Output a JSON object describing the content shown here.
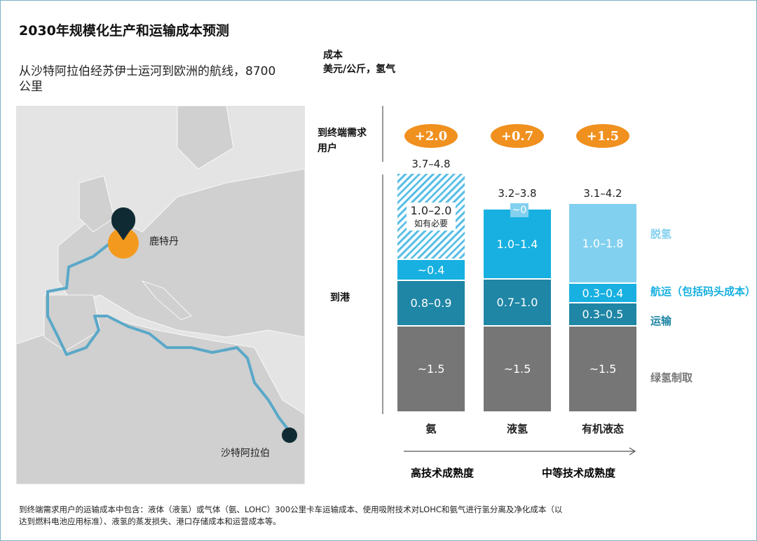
{
  "title": "2030年规模化生产和运输成本预测",
  "subtitle": "从沙特阿拉伯经苏伊士运河到欧洲的航线，8700 公里",
  "map": {
    "origin_label": "沙特阿拉伯",
    "destination_label": "鹿特丹",
    "route_color": "#5aa8c8"
  },
  "chart_data": {
    "type": "bar",
    "stacked": true,
    "unit_label": [
      "成本",
      "美元/公斤，氢气"
    ],
    "row_labels": {
      "end_user": "到终端需求用户",
      "to_port": "到港"
    },
    "categories": [
      "氨",
      "液氢",
      "有机液态"
    ],
    "series": [
      {
        "name": "绿氢制取",
        "color": "#767676",
        "values": [
          "~1.5",
          "~1.5",
          "~1.5"
        ]
      },
      {
        "name": "运输",
        "color": "#1f86a5",
        "values": [
          "0.8–0.9",
          "0.7–1.0",
          "0.3–0.5"
        ]
      },
      {
        "name": "航运（包括码头成本）",
        "color": "#17b0e0",
        "values": [
          "~0.4",
          "1.0–1.4",
          "0.3–0.4"
        ]
      },
      {
        "name": "脱氢",
        "color": "#82d0ef",
        "values": [
          "1.0–2.0",
          "~0",
          "1.0–1.8"
        ]
      }
    ],
    "dehydro_note": "如有必要",
    "totals": [
      "3.7–4.8",
      "3.2–3.8",
      "3.1–4.2"
    ],
    "end_user_add": [
      "+2.0",
      "+0.7",
      "+1.5"
    ],
    "maturity": {
      "high": "高技术成熟度",
      "medium": "中等技术成熟度"
    },
    "colors": {
      "bubble": "#f0901e"
    }
  },
  "footnote": "到终端需求用户的运输成本中包含：液体（液氢）或气体（氨、LOHC）300公里卡车运输成本、使用吸附技术对LOHC和氨气进行氢分离及净化成本（以达到燃料电池应用标准）、液氢的蒸发损失、港口存储成本和运营成本等。"
}
